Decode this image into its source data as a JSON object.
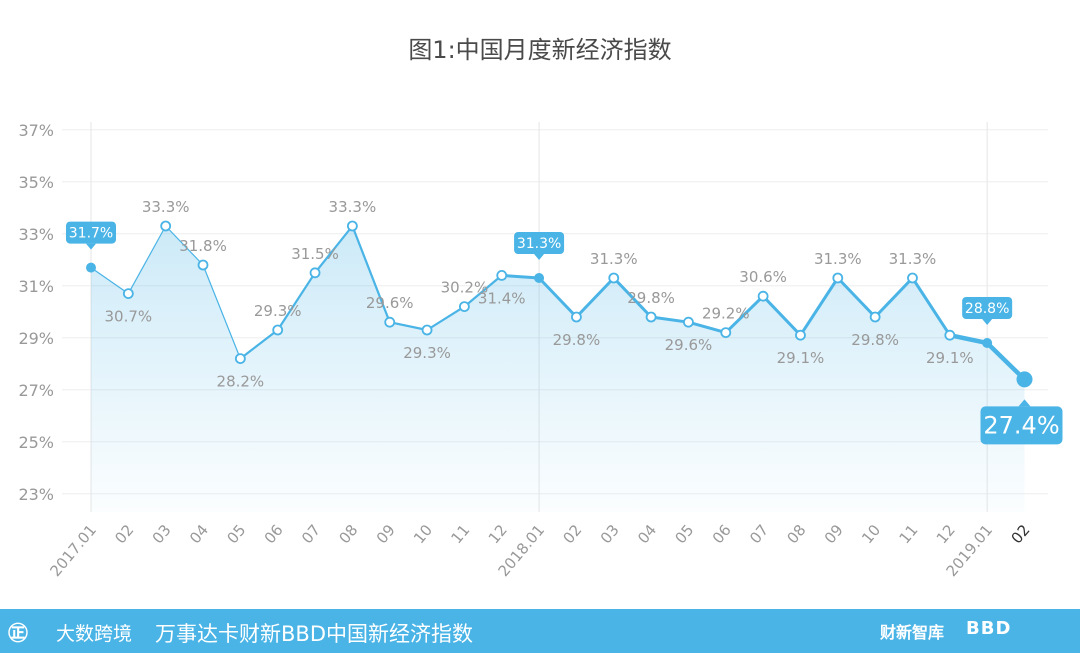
{
  "title": "图1:中国月度新经济指数",
  "footer": {
    "logo": "㊣",
    "brand": "大数跨境",
    "caption": "万事达卡财新BBD中国新经济指数",
    "caixin": "财新智库",
    "bbd": "BBD"
  },
  "colors": {
    "line": "#4ab4e6",
    "grid": "#eeeeee",
    "label": "#999999",
    "callout": "#4ab4e6"
  },
  "chart_data": {
    "type": "area",
    "categories": [
      "2017.01",
      "02",
      "03",
      "04",
      "05",
      "06",
      "07",
      "08",
      "09",
      "10",
      "11",
      "12",
      "2018.01",
      "02",
      "03",
      "04",
      "05",
      "06",
      "07",
      "08",
      "09",
      "10",
      "11",
      "12",
      "2019.01",
      "02"
    ],
    "values": [
      31.7,
      30.7,
      33.3,
      31.8,
      28.2,
      29.3,
      31.5,
      33.3,
      29.6,
      29.3,
      30.2,
      31.4,
      31.3,
      29.8,
      31.3,
      29.8,
      29.6,
      29.2,
      30.6,
      29.1,
      31.3,
      29.8,
      31.3,
      29.1,
      28.8,
      27.4
    ],
    "data_labels": [
      "31.7%",
      "30.7%",
      "33.3%",
      "31.8%",
      "28.2%",
      "29.3%",
      "31.5%",
      "33.3%",
      "29.6%",
      "29.3%",
      "30.2%",
      "31.4%",
      "31.3%",
      "29.8%",
      "31.3%",
      "29.8%",
      "29.6%",
      "29.2%",
      "30.6%",
      "29.1%",
      "31.3%",
      "29.8%",
      "31.3%",
      "29.1%",
      "28.8%",
      "27.4%"
    ],
    "y_ticks": [
      "23%",
      "25%",
      "27%",
      "29%",
      "31%",
      "33%",
      "35%",
      "37%"
    ],
    "ylim": [
      22.3,
      37.3
    ],
    "highlighted": [
      "2017.01",
      "2018.01",
      "2019.01",
      "02"
    ],
    "grid": true
  }
}
